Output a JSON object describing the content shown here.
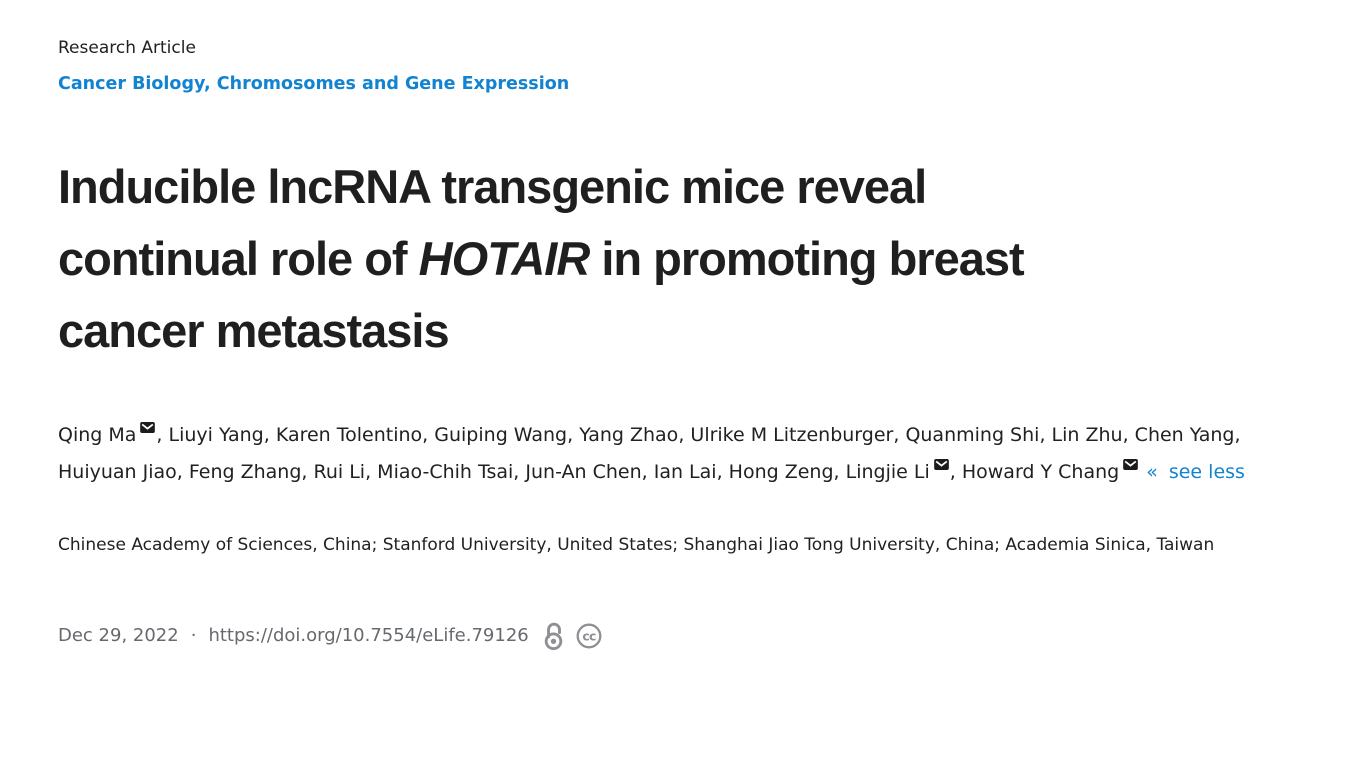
{
  "colors": {
    "link_blue": "#1283d1",
    "text_dark": "#212121",
    "title_dark": "#1f1f1f",
    "muted_gray": "#66696d",
    "icon_gray": "#8e9093",
    "email_icon_black": "#1c1c1c"
  },
  "header": {
    "article_type": "Research Article",
    "subject_separator": ", ",
    "subjects": [
      {
        "label": "Cancer Biology"
      },
      {
        "label": "Chromosomes and Gene Expression"
      }
    ]
  },
  "title": {
    "pre": "Inducible lncRNA transgenic mice reveal\ncontinual role of ",
    "italic": "HOTAIR",
    "post": " in promoting breast\ncancer metastasis"
  },
  "authors": {
    "separator": ", ",
    "collapse_arrow": "«",
    "collapse_label": "see less",
    "email_icon_name": "email-icon",
    "list": [
      {
        "name": "Qing Ma",
        "email": true
      },
      {
        "name": "Liuyi Yang",
        "email": false
      },
      {
        "name": "Karen Tolentino",
        "email": false
      },
      {
        "name": "Guiping Wang",
        "email": false
      },
      {
        "name": "Yang Zhao",
        "email": false
      },
      {
        "name": "Ulrike M Litzenburger",
        "email": false
      },
      {
        "name": "Quanming Shi",
        "email": false
      },
      {
        "name": "Lin Zhu",
        "email": false
      },
      {
        "name": "Chen Yang",
        "email": false
      },
      {
        "name": "Huiyuan Jiao",
        "email": false
      },
      {
        "name": "Feng Zhang",
        "email": false
      },
      {
        "name": "Rui Li",
        "email": false
      },
      {
        "name": "Miao-Chih Tsai",
        "email": false
      },
      {
        "name": "Jun-An Chen",
        "email": false
      },
      {
        "name": "Ian Lai",
        "email": false
      },
      {
        "name": "Hong Zeng",
        "email": false
      },
      {
        "name": "Lingjie Li",
        "email": true
      },
      {
        "name": "Howard Y Chang",
        "email": true
      }
    ]
  },
  "affiliations": "Chinese Academy of Sciences, China; Stanford University, United States; Shanghai Jiao Tong University, China; Academia Sinica, Taiwan",
  "footer": {
    "date": "Dec 29, 2022",
    "separator": "·",
    "doi": "https://doi.org/10.7554/eLife.79126",
    "icons": {
      "open_access": "open-access-lock-icon",
      "license": "creative-commons-icon"
    }
  }
}
